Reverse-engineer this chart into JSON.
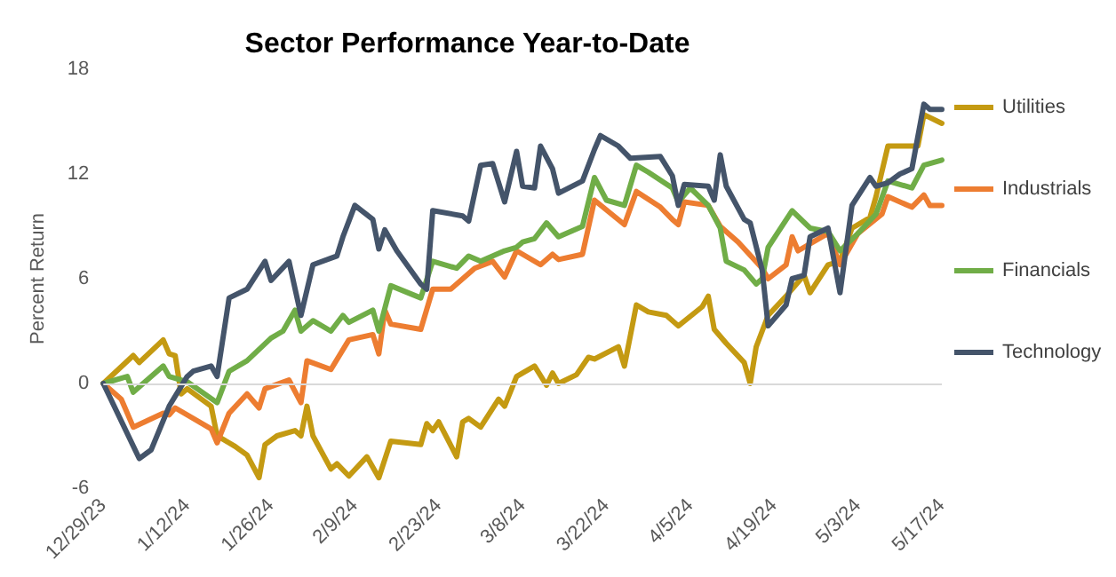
{
  "chart_data": {
    "type": "line",
    "title": "Sector Performance Year-to-Date",
    "ylabel": "Percent Return",
    "xlim": [
      "2023-12-29",
      "2024-05-17"
    ],
    "xticks": [
      {
        "value": "2023-12-29",
        "label": "12/29/23"
      },
      {
        "value": "2024-01-12",
        "label": "1/12/24"
      },
      {
        "value": "2024-01-26",
        "label": "1/26/24"
      },
      {
        "value": "2024-02-09",
        "label": "2/9/24"
      },
      {
        "value": "2024-02-23",
        "label": "2/23/24"
      },
      {
        "value": "2024-03-08",
        "label": "3/8/24"
      },
      {
        "value": "2024-03-22",
        "label": "3/22/24"
      },
      {
        "value": "2024-04-05",
        "label": "4/5/24"
      },
      {
        "value": "2024-04-19",
        "label": "4/19/24"
      },
      {
        "value": "2024-05-03",
        "label": "5/3/24"
      },
      {
        "value": "2024-05-17",
        "label": "5/17/24"
      }
    ],
    "ylim": [
      -6,
      18
    ],
    "yticks": [
      -6,
      0,
      6,
      12,
      18
    ],
    "ref_lines": [
      {
        "axis": "y",
        "value": 0,
        "color": "#d9d9d9"
      }
    ],
    "grid": false,
    "legend": "right",
    "marker": "none",
    "line_style": "solid",
    "series": [
      {
        "name": "Utilities",
        "color": "#c49a12",
        "x": [
          "2023-12-29",
          "2024-01-03",
          "2024-01-04",
          "2024-01-08",
          "2024-01-09",
          "2024-01-10",
          "2024-01-11",
          "2024-01-12",
          "2024-01-16",
          "2024-01-17",
          "2024-01-20",
          "2024-01-22",
          "2024-01-24",
          "2024-01-25",
          "2024-01-27",
          "2024-01-30",
          "2024-01-31",
          "2024-02-01",
          "2024-02-02",
          "2024-02-05",
          "2024-02-06",
          "2024-02-08",
          "2024-02-11",
          "2024-02-13",
          "2024-02-15",
          "2024-02-20",
          "2024-02-21",
          "2024-02-22",
          "2024-02-23",
          "2024-02-26",
          "2024-02-27",
          "2024-02-28",
          "2024-03-01",
          "2024-03-04",
          "2024-03-05",
          "2024-03-07",
          "2024-03-10",
          "2024-03-12",
          "2024-03-13",
          "2024-03-14",
          "2024-03-17",
          "2024-03-19",
          "2024-03-20",
          "2024-03-24",
          "2024-03-25",
          "2024-03-27",
          "2024-03-29",
          "2024-04-01",
          "2024-04-03",
          "2024-04-07",
          "2024-04-08",
          "2024-04-09",
          "2024-04-11",
          "2024-04-14",
          "2024-04-15",
          "2024-04-16",
          "2024-04-18",
          "2024-04-21",
          "2024-04-24",
          "2024-04-25",
          "2024-04-28",
          "2024-04-30",
          "2024-05-02",
          "2024-05-05",
          "2024-05-06",
          "2024-05-08",
          "2024-05-13",
          "2024-05-14",
          "2024-05-17"
        ],
        "values": [
          0,
          1.6,
          1.2,
          2.5,
          1.7,
          1.6,
          -0.6,
          -0.3,
          -1.3,
          -3.0,
          -3.6,
          -4.1,
          -5.4,
          -3.5,
          -3.0,
          -2.7,
          -3.0,
          -1.3,
          -3.0,
          -4.9,
          -4.6,
          -5.3,
          -4.2,
          -5.4,
          -3.3,
          -3.5,
          -2.3,
          -2.7,
          -2.2,
          -4.2,
          -2.2,
          -2.0,
          -2.5,
          -0.9,
          -1.3,
          0.4,
          1.0,
          -0.1,
          0.6,
          0,
          0.5,
          1.5,
          1.4,
          2.1,
          1.0,
          4.5,
          4.1,
          3.9,
          3.3,
          4.4,
          5.0,
          3.1,
          2.3,
          1.2,
          0,
          2.1,
          3.9,
          5.0,
          6.2,
          5.2,
          6.8,
          7.0,
          8.9,
          9.5,
          10.7,
          13.6,
          13.6,
          15.4,
          14.9
        ]
      },
      {
        "name": "Industrials",
        "color": "#ed7d31",
        "x": [
          "2023-12-29",
          "2024-01-01",
          "2024-01-03",
          "2024-01-08",
          "2024-01-09",
          "2024-01-10",
          "2024-01-16",
          "2024-01-17",
          "2024-01-19",
          "2024-01-22",
          "2024-01-24",
          "2024-01-25",
          "2024-01-29",
          "2024-01-31",
          "2024-02-01",
          "2024-02-05",
          "2024-02-08",
          "2024-02-12",
          "2024-02-13",
          "2024-02-14",
          "2024-02-15",
          "2024-02-20",
          "2024-02-22",
          "2024-02-25",
          "2024-02-29",
          "2024-03-03",
          "2024-03-05",
          "2024-03-07",
          "2024-03-11",
          "2024-03-13",
          "2024-03-14",
          "2024-03-18",
          "2024-03-20",
          "2024-03-25",
          "2024-03-27",
          "2024-03-31",
          "2024-04-02",
          "2024-04-03",
          "2024-04-04",
          "2024-04-08",
          "2024-04-10",
          "2024-04-13",
          "2024-04-17",
          "2024-04-18",
          "2024-04-21",
          "2024-04-22",
          "2024-04-23",
          "2024-04-28",
          "2024-04-30",
          "2024-05-03",
          "2024-05-07",
          "2024-05-08",
          "2024-05-12",
          "2024-05-14",
          "2024-05-15",
          "2024-05-17"
        ],
        "values": [
          0,
          -0.9,
          -2.5,
          -1.7,
          -1.8,
          -1.4,
          -2.6,
          -3.4,
          -1.7,
          -0.6,
          -1.4,
          -0.3,
          0.2,
          -1.1,
          1.3,
          0.8,
          2.5,
          2.8,
          1.7,
          4.2,
          3.4,
          3.1,
          5.4,
          5.4,
          6.6,
          7.0,
          6.1,
          7.6,
          6.8,
          7.4,
          7.1,
          7.4,
          10.5,
          9.1,
          11.0,
          10.1,
          9.4,
          9.1,
          10.4,
          10.2,
          9.0,
          8.1,
          6.6,
          6.0,
          6.8,
          8.4,
          7.6,
          8.6,
          6.8,
          8.6,
          9.7,
          10.7,
          10.1,
          10.8,
          10.2,
          10.2
        ]
      },
      {
        "name": "Financials",
        "color": "#70ad47",
        "x": [
          "2023-12-29",
          "2024-01-02",
          "2024-01-03",
          "2024-01-08",
          "2024-01-09",
          "2024-01-12",
          "2024-01-17",
          "2024-01-19",
          "2024-01-22",
          "2024-01-26",
          "2024-01-28",
          "2024-01-30",
          "2024-01-31",
          "2024-02-02",
          "2024-02-05",
          "2024-02-07",
          "2024-02-08",
          "2024-02-12",
          "2024-02-13",
          "2024-02-15",
          "2024-02-20",
          "2024-02-22",
          "2024-02-26",
          "2024-02-28",
          "2024-03-01",
          "2024-03-05",
          "2024-03-07",
          "2024-03-08",
          "2024-03-10",
          "2024-03-12",
          "2024-03-14",
          "2024-03-18",
          "2024-03-20",
          "2024-03-22",
          "2024-03-25",
          "2024-03-27",
          "2024-03-29",
          "2024-04-02",
          "2024-04-03",
          "2024-04-05",
          "2024-04-08",
          "2024-04-10",
          "2024-04-11",
          "2024-04-14",
          "2024-04-16",
          "2024-04-17",
          "2024-04-18",
          "2024-04-22",
          "2024-04-25",
          "2024-04-28",
          "2024-04-30",
          "2024-05-03",
          "2024-05-06",
          "2024-05-08",
          "2024-05-12",
          "2024-05-14",
          "2024-05-17"
        ],
        "values": [
          0,
          0.4,
          -0.5,
          1.0,
          0.4,
          0.1,
          -1.1,
          0.7,
          1.3,
          2.6,
          3.0,
          4.2,
          3.0,
          3.6,
          3.0,
          3.9,
          3.5,
          4.2,
          3.0,
          5.6,
          4.9,
          7.0,
          6.6,
          7.3,
          7.0,
          7.6,
          7.8,
          8.1,
          8.3,
          9.2,
          8.4,
          9.0,
          11.8,
          10.5,
          10.2,
          12.5,
          12.1,
          11.2,
          10.4,
          11.2,
          10.2,
          8.9,
          7.0,
          6.5,
          5.7,
          6.0,
          7.8,
          9.9,
          8.9,
          8.7,
          7.6,
          8.6,
          9.7,
          11.6,
          11.2,
          12.5,
          12.8
        ]
      },
      {
        "name": "Technology",
        "color": "#44546a",
        "x": [
          "2023-12-29",
          "2024-01-04",
          "2024-01-06",
          "2024-01-09",
          "2024-01-12",
          "2024-01-13",
          "2024-01-16",
          "2024-01-17",
          "2024-01-19",
          "2024-01-22",
          "2024-01-25",
          "2024-01-26",
          "2024-01-29",
          "2024-01-31",
          "2024-02-02",
          "2024-02-06",
          "2024-02-07",
          "2024-02-09",
          "2024-02-12",
          "2024-02-13",
          "2024-02-14",
          "2024-02-16",
          "2024-02-20",
          "2024-02-21",
          "2024-02-22",
          "2024-02-27",
          "2024-02-28",
          "2024-03-01",
          "2024-03-03",
          "2024-03-05",
          "2024-03-07",
          "2024-03-08",
          "2024-03-10",
          "2024-03-11",
          "2024-03-13",
          "2024-03-14",
          "2024-03-18",
          "2024-03-20",
          "2024-03-21",
          "2024-03-24",
          "2024-03-26",
          "2024-03-31",
          "2024-04-02",
          "2024-04-03",
          "2024-04-04",
          "2024-04-08",
          "2024-04-09",
          "2024-04-10",
          "2024-04-11",
          "2024-04-14",
          "2024-04-15",
          "2024-04-17",
          "2024-04-18",
          "2024-04-21",
          "2024-04-22",
          "2024-04-24",
          "2024-04-25",
          "2024-04-28",
          "2024-04-30",
          "2024-05-02",
          "2024-05-05",
          "2024-05-06",
          "2024-05-08",
          "2024-05-10",
          "2024-05-12",
          "2024-05-14",
          "2024-05-15",
          "2024-05-17"
        ],
        "values": [
          0,
          -4.3,
          -3.8,
          -1.3,
          0.4,
          0.7,
          1.0,
          0.4,
          4.9,
          5.4,
          7.0,
          5.9,
          7.0,
          3.9,
          6.8,
          7.3,
          8.4,
          10.2,
          9.4,
          7.7,
          8.8,
          7.6,
          5.7,
          5.4,
          9.9,
          9.6,
          9.3,
          12.5,
          12.6,
          10.4,
          13.3,
          11.3,
          11.2,
          13.6,
          12.3,
          10.9,
          11.6,
          13.4,
          14.2,
          13.6,
          12.9,
          13.0,
          11.9,
          10.2,
          11.4,
          11.3,
          10.5,
          13.1,
          11.3,
          9.4,
          9.2,
          6.5,
          3.3,
          4.5,
          6.0,
          6.2,
          8.4,
          8.9,
          5.2,
          10.2,
          11.8,
          11.3,
          11.5,
          12.0,
          12.3,
          16.0,
          15.7,
          15.7
        ]
      }
    ]
  }
}
